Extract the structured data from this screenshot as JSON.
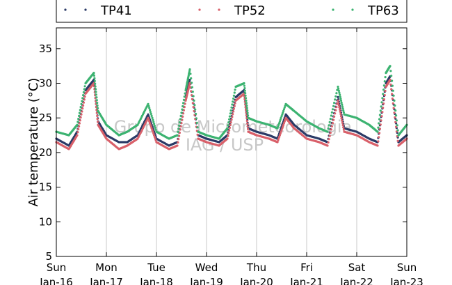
{
  "chart_data": {
    "type": "scatter",
    "title": "",
    "ylabel": "Air temperature (°C)",
    "xlabel": "",
    "xlim": [
      "2011-01-16",
      "2011-01-23"
    ],
    "ylim": [
      5,
      38
    ],
    "y_ticks": [
      5,
      10,
      15,
      20,
      25,
      30,
      35
    ],
    "x_ticks": [
      {
        "day": "Sun",
        "date": "Jan-16"
      },
      {
        "day": "Mon",
        "date": "Jan-17"
      },
      {
        "day": "Tue",
        "date": "Jan-18"
      },
      {
        "day": "Wed",
        "date": "Jan-19"
      },
      {
        "day": "Thu",
        "date": "Jan-20"
      },
      {
        "day": "Fri",
        "date": "Jan-21"
      },
      {
        "day": "Sat",
        "date": "Jan-22"
      },
      {
        "day": "Sun",
        "date": "Jan-23"
      }
    ],
    "grid": "vertical",
    "legend_position": "top",
    "watermark": [
      "Grupo de Micrometeorologia",
      "IAG / USP"
    ],
    "series": [
      {
        "name": "TP41",
        "color": "#2b3a67",
        "x": [
          "2011-01-16 00:00",
          "2011-01-16 06:00",
          "2011-01-16 10:00",
          "2011-01-16 14:00",
          "2011-01-16 18:00",
          "2011-01-16 20:00",
          "2011-01-17 00:00",
          "2011-01-17 06:00",
          "2011-01-17 10:00",
          "2011-01-17 15:00",
          "2011-01-17 20:00",
          "2011-01-18 00:00",
          "2011-01-18 06:00",
          "2011-01-18 10:00",
          "2011-01-18 14:00",
          "2011-01-18 16:00",
          "2011-01-18 20:00",
          "2011-01-19 00:00",
          "2011-01-19 06:00",
          "2011-01-19 10:00",
          "2011-01-19 14:00",
          "2011-01-19 18:00",
          "2011-01-19 20:00",
          "2011-01-20 00:00",
          "2011-01-20 06:00",
          "2011-01-20 10:00",
          "2011-01-20 14:00",
          "2011-01-20 18:00",
          "2011-01-21 00:00",
          "2011-01-21 06:00",
          "2011-01-21 10:00",
          "2011-01-21 15:00",
          "2011-01-21 18:00",
          "2011-01-22 00:00",
          "2011-01-22 06:00",
          "2011-01-22 10:00",
          "2011-01-22 14:00",
          "2011-01-22 16:00",
          "2011-01-22 20:00",
          "2011-01-23 00:00"
        ],
        "y": [
          22,
          21,
          23,
          29,
          30.5,
          24.5,
          22.5,
          21.5,
          21.5,
          22.5,
          25.5,
          22,
          21,
          21.5,
          28,
          30.5,
          22.5,
          22,
          21.5,
          22.5,
          28,
          29,
          23.5,
          23,
          22.5,
          22,
          25.5,
          24,
          22.5,
          22,
          21.5,
          28,
          23.5,
          23,
          22,
          21.5,
          30,
          31,
          21.5,
          22.5
        ]
      },
      {
        "name": "TP52",
        "color": "#d9606a",
        "x": [
          "2011-01-16 00:00",
          "2011-01-16 06:00",
          "2011-01-16 10:00",
          "2011-01-16 14:00",
          "2011-01-16 18:00",
          "2011-01-16 20:00",
          "2011-01-17 00:00",
          "2011-01-17 06:00",
          "2011-01-17 10:00",
          "2011-01-17 15:00",
          "2011-01-17 20:00",
          "2011-01-18 00:00",
          "2011-01-18 06:00",
          "2011-01-18 10:00",
          "2011-01-18 14:00",
          "2011-01-18 16:00",
          "2011-01-18 20:00",
          "2011-01-19 00:00",
          "2011-01-19 06:00",
          "2011-01-19 10:00",
          "2011-01-19 14:00",
          "2011-01-19 18:00",
          "2011-01-19 20:00",
          "2011-01-20 00:00",
          "2011-01-20 06:00",
          "2011-01-20 10:00",
          "2011-01-20 14:00",
          "2011-01-20 18:00",
          "2011-01-21 00:00",
          "2011-01-21 06:00",
          "2011-01-21 10:00",
          "2011-01-21 15:00",
          "2011-01-21 18:00",
          "2011-01-22 00:00",
          "2011-01-22 06:00",
          "2011-01-22 10:00",
          "2011-01-22 14:00",
          "2011-01-22 16:00",
          "2011-01-22 20:00",
          "2011-01-23 00:00"
        ],
        "y": [
          21.5,
          20.5,
          22.5,
          28.5,
          30,
          24,
          22,
          20.5,
          21,
          22,
          25,
          21.5,
          20.5,
          21,
          27.5,
          30,
          22,
          21.5,
          21,
          22,
          27.5,
          28.5,
          23,
          22.5,
          22,
          21.5,
          25,
          23.5,
          22,
          21.5,
          21,
          27.5,
          23,
          22.5,
          21.5,
          21,
          29.5,
          30.5,
          21,
          22
        ]
      },
      {
        "name": "TP63",
        "color": "#3cb371",
        "x": [
          "2011-01-16 00:00",
          "2011-01-16 06:00",
          "2011-01-16 10:00",
          "2011-01-16 14:00",
          "2011-01-16 18:00",
          "2011-01-16 20:00",
          "2011-01-17 00:00",
          "2011-01-17 06:00",
          "2011-01-17 10:00",
          "2011-01-17 15:00",
          "2011-01-17 20:00",
          "2011-01-18 00:00",
          "2011-01-18 06:00",
          "2011-01-18 10:00",
          "2011-01-18 14:00",
          "2011-01-18 16:00",
          "2011-01-18 20:00",
          "2011-01-19 00:00",
          "2011-01-19 06:00",
          "2011-01-19 10:00",
          "2011-01-19 14:00",
          "2011-01-19 18:00",
          "2011-01-19 20:00",
          "2011-01-20 00:00",
          "2011-01-20 06:00",
          "2011-01-20 10:00",
          "2011-01-20 14:00",
          "2011-01-20 18:00",
          "2011-01-21 00:00",
          "2011-01-21 06:00",
          "2011-01-21 10:00",
          "2011-01-21 15:00",
          "2011-01-21 18:00",
          "2011-01-22 00:00",
          "2011-01-22 06:00",
          "2011-01-22 10:00",
          "2011-01-22 14:00",
          "2011-01-22 16:00",
          "2011-01-22 20:00",
          "2011-01-23 00:00"
        ],
        "y": [
          23,
          22.5,
          24,
          30,
          31.5,
          26,
          24,
          22.5,
          23,
          24,
          27,
          23,
          22,
          22.5,
          29,
          32,
          23,
          22.5,
          22,
          23.5,
          29.5,
          30,
          25,
          24.5,
          24,
          23.5,
          27,
          26,
          24.5,
          23.5,
          23,
          29.5,
          25.5,
          25,
          24,
          23,
          31.5,
          32.5,
          22.5,
          24
        ]
      }
    ]
  }
}
